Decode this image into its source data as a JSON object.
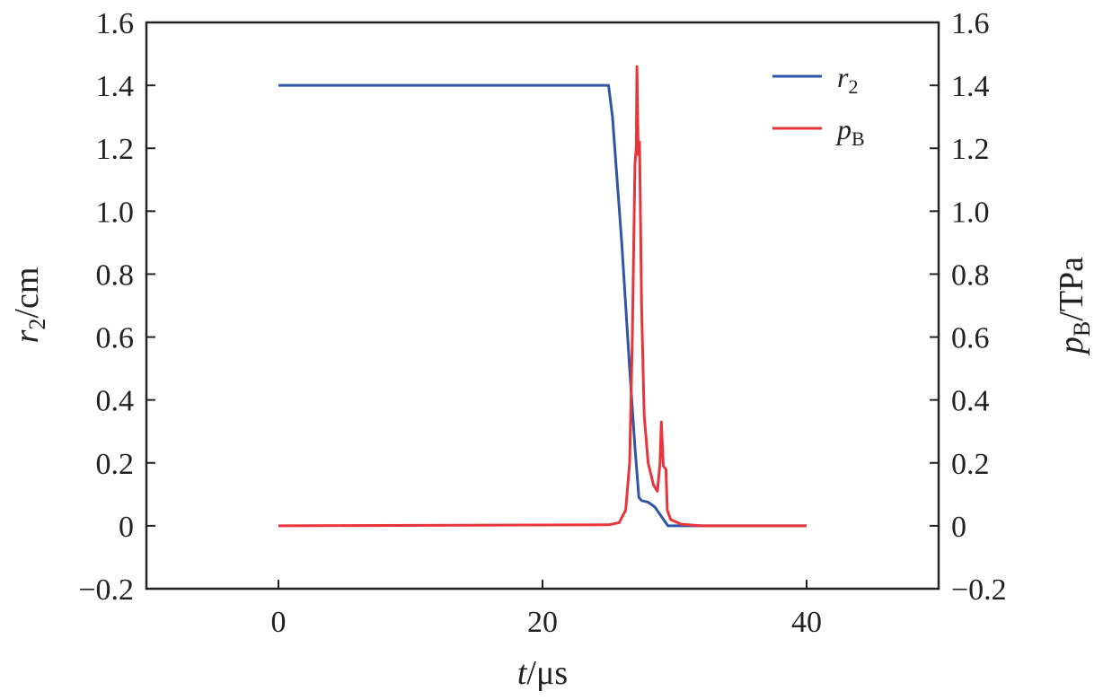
{
  "chart_data": {
    "type": "line",
    "xlabel": {
      "var": "t",
      "unit": "/μs"
    },
    "ylabel_left": {
      "var": "r",
      "sub": "2",
      "unit": "/cm"
    },
    "ylabel_right": {
      "var": "p",
      "sub": "B",
      "unit": "/TPa"
    },
    "xlim": [
      -10,
      50
    ],
    "ylim": [
      -0.2,
      1.6
    ],
    "xticks": [
      0,
      20,
      40
    ],
    "yticks": [
      -0.2,
      0,
      0.2,
      0.4,
      0.6,
      0.8,
      1.0,
      1.2,
      1.4,
      1.6
    ],
    "ytick_labels_left": [
      "−0.2",
      "0",
      "0.2",
      "0.4",
      "0.6",
      "0.8",
      "1.0",
      "1.2",
      "1.4",
      "1.6"
    ],
    "ytick_labels_right": [
      "−0.2",
      "0",
      "0.2",
      "0.4",
      "0.6",
      "0.8",
      "1.0",
      "1.2",
      "1.4",
      "1.6"
    ],
    "grid": false,
    "legend_position": "top-right",
    "series": [
      {
        "name": "r2",
        "legend_var": "r",
        "legend_sub": "2",
        "color": "#2f55a4",
        "points": [
          [
            0,
            1.4
          ],
          [
            25,
            1.4
          ],
          [
            25.3,
            1.3
          ],
          [
            26,
            0.9
          ],
          [
            26.6,
            0.5
          ],
          [
            27.0,
            0.25
          ],
          [
            27.3,
            0.09
          ],
          [
            27.5,
            0.08
          ],
          [
            28,
            0.075
          ],
          [
            28.5,
            0.06
          ],
          [
            29,
            0.03
          ],
          [
            29.5,
            0.0
          ],
          [
            40,
            0.0
          ]
        ]
      },
      {
        "name": "pB",
        "legend_var": "p",
        "legend_sub": "B",
        "color": "#e8343a",
        "points": [
          [
            0,
            0
          ],
          [
            25,
            0.003
          ],
          [
            25.8,
            0.01
          ],
          [
            26.3,
            0.05
          ],
          [
            26.6,
            0.2
          ],
          [
            26.8,
            0.6
          ],
          [
            27.0,
            1.15
          ],
          [
            27.1,
            1.2
          ],
          [
            27.15,
            1.46
          ],
          [
            27.25,
            1.18
          ],
          [
            27.35,
            1.22
          ],
          [
            27.5,
            0.7
          ],
          [
            27.7,
            0.35
          ],
          [
            28.0,
            0.2
          ],
          [
            28.4,
            0.13
          ],
          [
            28.7,
            0.11
          ],
          [
            28.9,
            0.2
          ],
          [
            29.0,
            0.33
          ],
          [
            29.15,
            0.19
          ],
          [
            29.35,
            0.18
          ],
          [
            29.45,
            0.05
          ],
          [
            29.7,
            0.02
          ],
          [
            30.5,
            0.005
          ],
          [
            32,
            0.0
          ],
          [
            40,
            0.0
          ]
        ]
      }
    ]
  }
}
